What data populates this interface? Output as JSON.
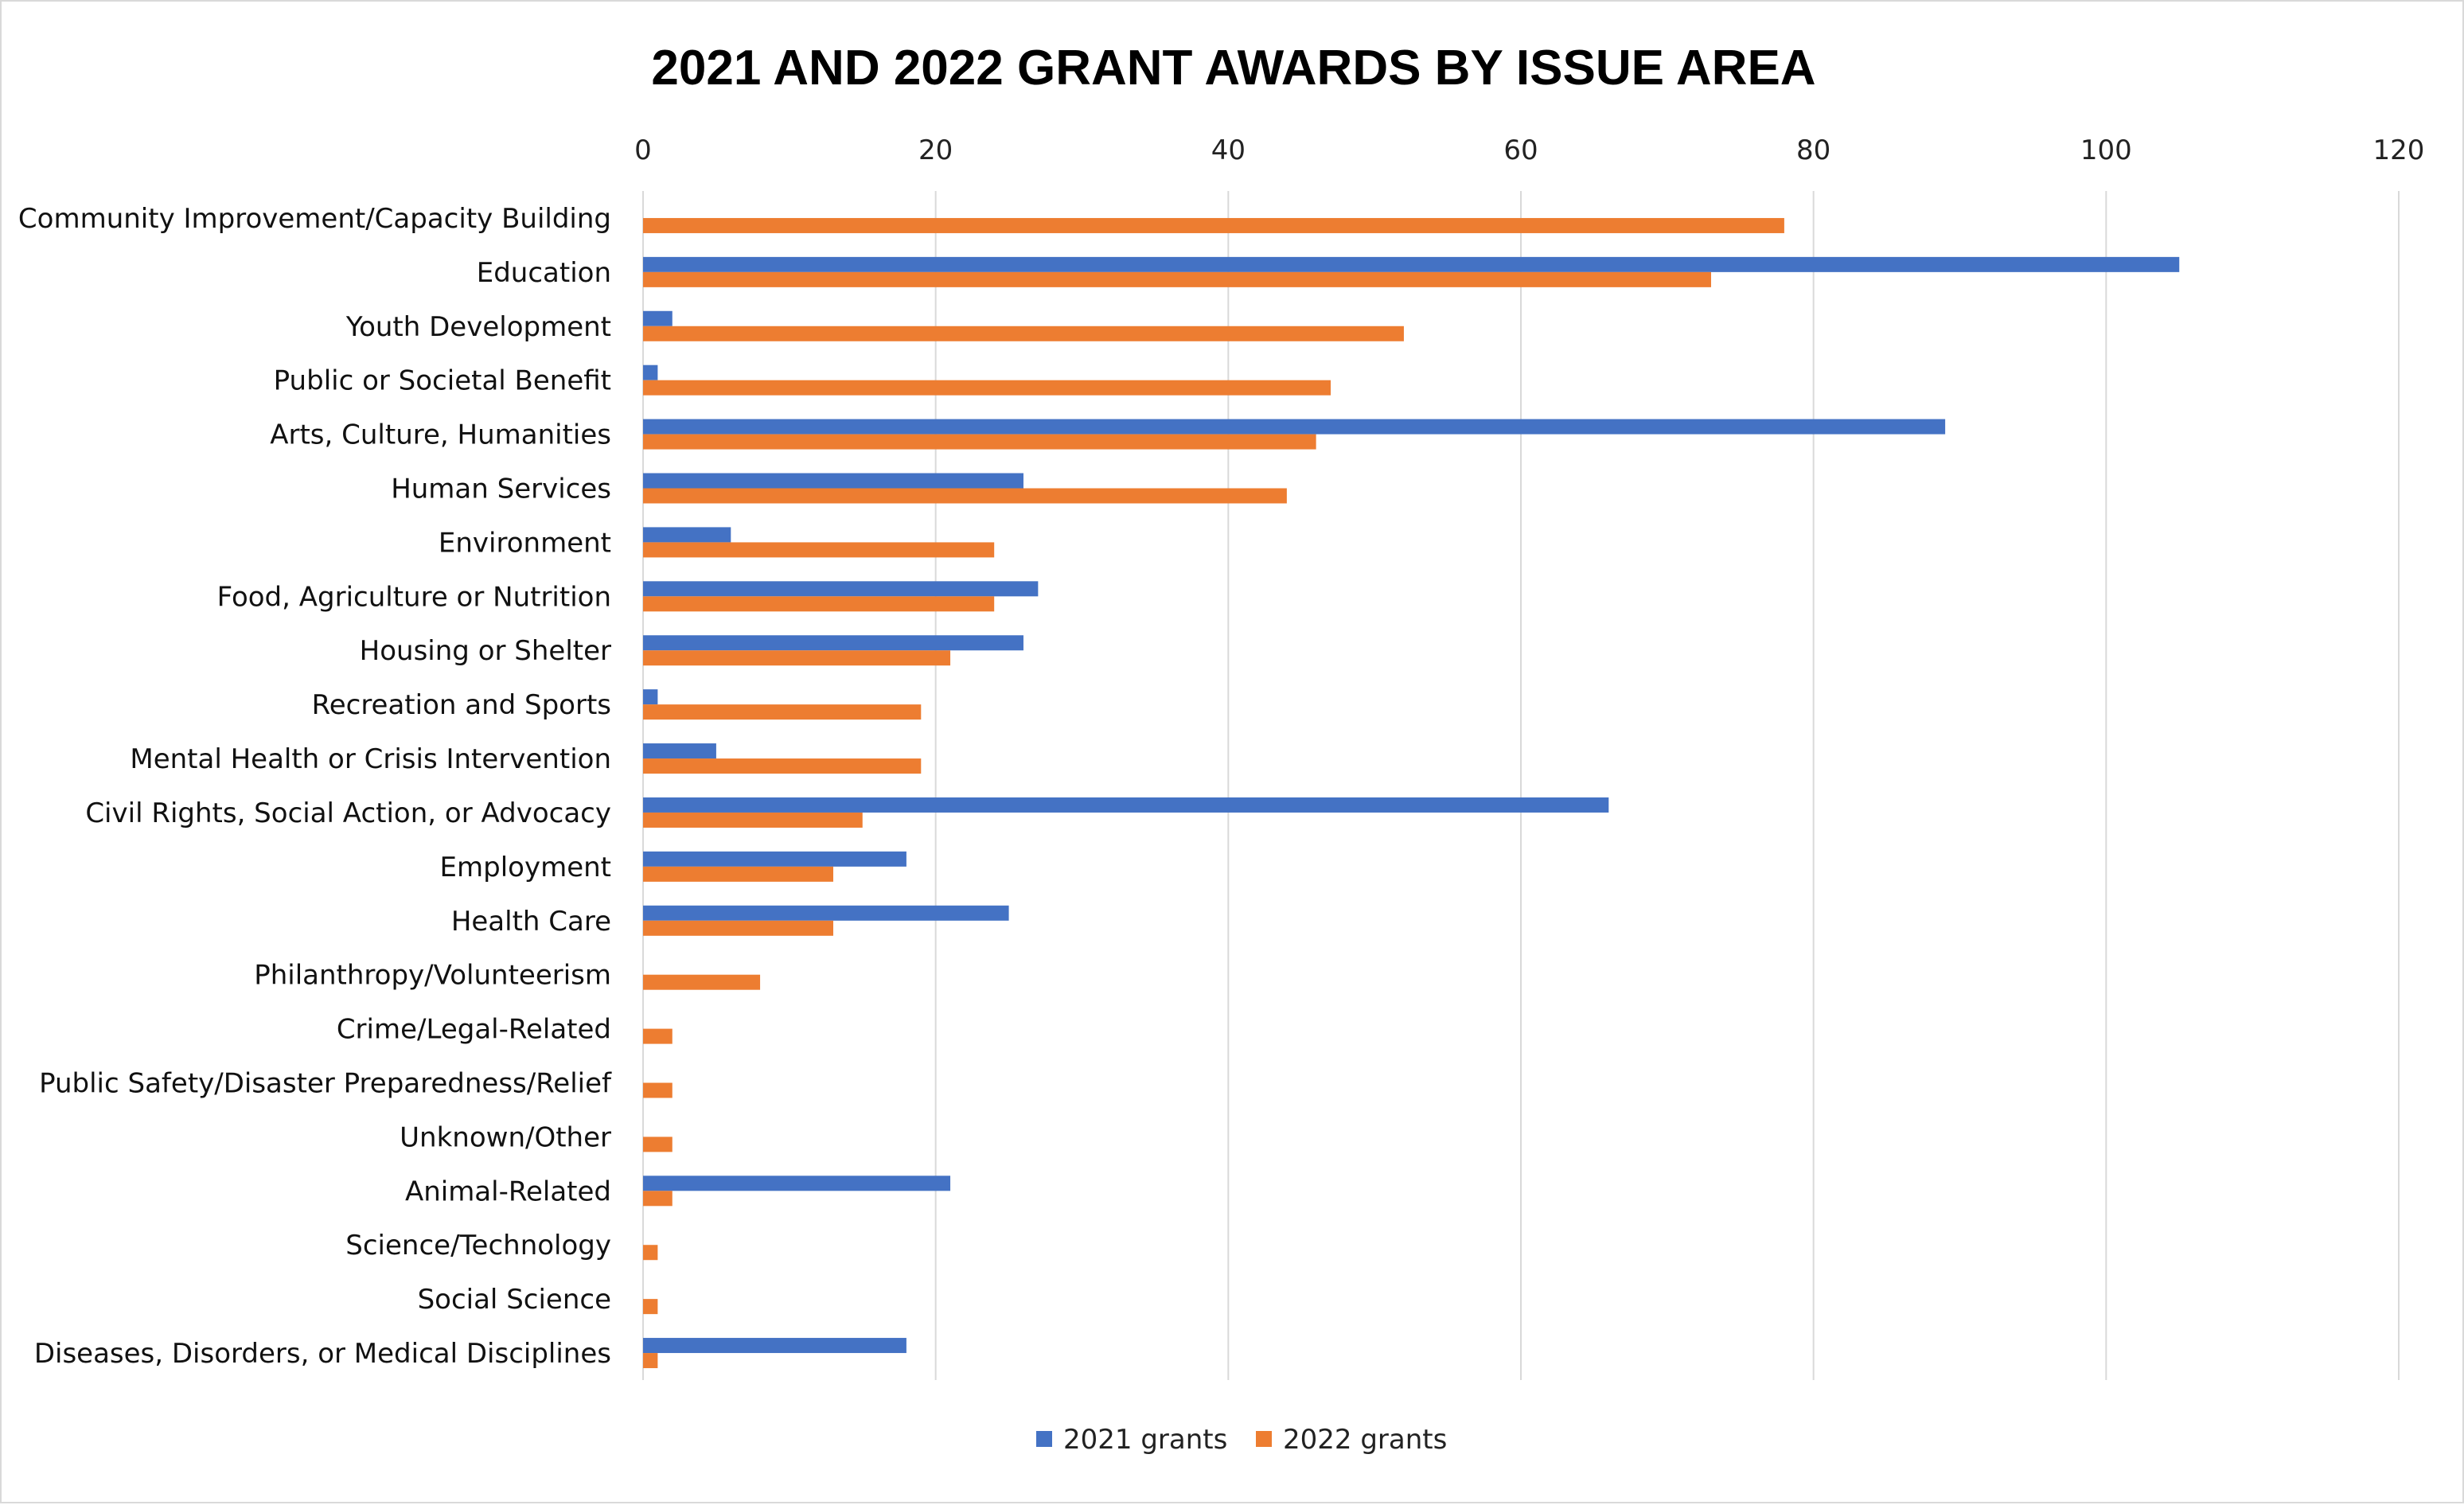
{
  "chart_data": {
    "type": "bar",
    "orientation": "horizontal",
    "title": "2021 AND 2022 GRANT AWARDS BY ISSUE AREA",
    "xlim": [
      0,
      120
    ],
    "x_ticks": [
      "0",
      "20",
      "40",
      "60",
      "80",
      "100",
      "120"
    ],
    "x_axis_position": "top",
    "grid": true,
    "legend_position": "bottom",
    "categories": [
      "Community Improvement/Capacity Building",
      "Education",
      "Youth Development",
      "Public or Societal Benefit",
      "Arts, Culture, Humanities",
      "Human Services",
      "Environment",
      "Food, Agriculture or Nutrition",
      "Housing or Shelter",
      "Recreation and Sports",
      "Mental Health or Crisis Intervention",
      "Civil Rights, Social Action, or Advocacy",
      "Employment",
      "Health Care",
      "Philanthropy/Volunteerism",
      "Crime/Legal-Related",
      "Public Safety/Disaster Preparedness/Relief",
      "Unknown/Other",
      "Animal-Related",
      "Science/Technology",
      "Social Science",
      "Diseases, Disorders, or Medical Disciplines"
    ],
    "series": [
      {
        "name": "2021 grants",
        "color": "#4472c4",
        "values": [
          0,
          105,
          2,
          1,
          89,
          26,
          6,
          27,
          26,
          1,
          5,
          66,
          18,
          25,
          0,
          0,
          0,
          0,
          21,
          0,
          0,
          18
        ]
      },
      {
        "name": "2022 grants",
        "color": "#ed7d31",
        "values": [
          78,
          73,
          52,
          47,
          46,
          44,
          24,
          24,
          21,
          19,
          19,
          15,
          13,
          13,
          8,
          2,
          2,
          2,
          2,
          1,
          1,
          1
        ]
      }
    ]
  }
}
